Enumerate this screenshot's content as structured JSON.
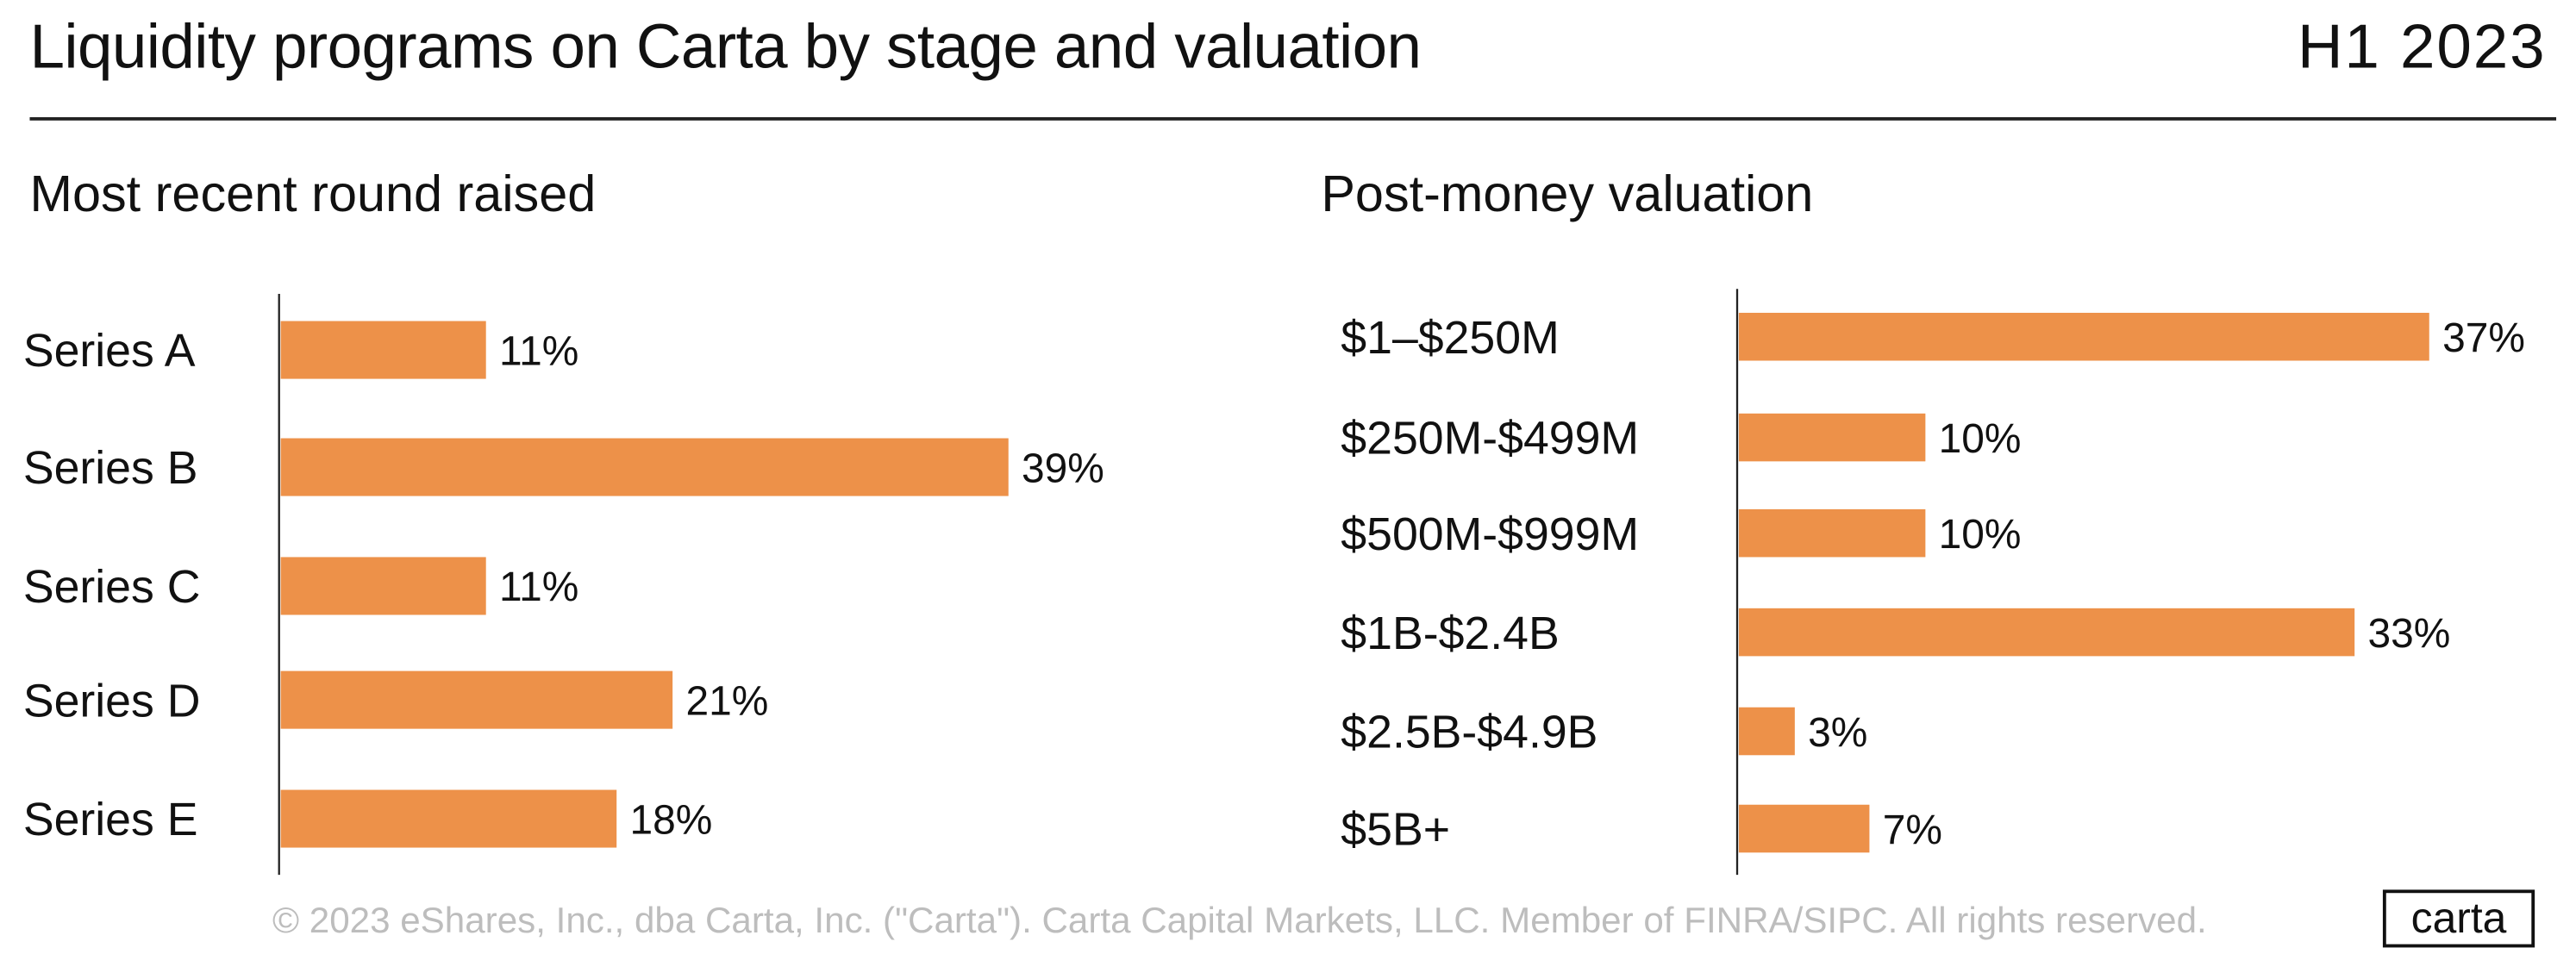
{
  "header": {
    "title": "Liquidity programs on Carta by stage and valuation",
    "period": "H1 2023"
  },
  "footer": {
    "copyright": "© 2023 eShares, Inc., dba Carta, Inc. (\"Carta\"). Carta Capital Markets, LLC. Member of FINRA/SIPC. All rights reserved.",
    "logo": "carta"
  },
  "colors": {
    "bar": "#ED9149",
    "text": "#111111",
    "footer": "#BDBDBD"
  },
  "chart_data": [
    {
      "type": "bar",
      "orientation": "horizontal",
      "title": "Most recent round raised",
      "categories": [
        "Series A",
        "Series B",
        "Series C",
        "Series D",
        "Series E"
      ],
      "values": [
        11,
        39,
        11,
        21,
        18
      ],
      "data_labels": [
        "11%",
        "39%",
        "11%",
        "21%",
        "18%"
      ],
      "unit": "%",
      "grid": false
    },
    {
      "type": "bar",
      "orientation": "horizontal",
      "title": "Post-money valuation",
      "categories": [
        "$1–$250M",
        "$250M-$499M",
        "$500M-$999M",
        "$1B-$2.4B",
        "$2.5B-$4.9B",
        "$5B+"
      ],
      "values": [
        37,
        10,
        10,
        33,
        3,
        7
      ],
      "data_labels": [
        "37%",
        "10%",
        "10%",
        "33%",
        "3%",
        "7%"
      ],
      "unit": "%",
      "grid": false
    }
  ]
}
